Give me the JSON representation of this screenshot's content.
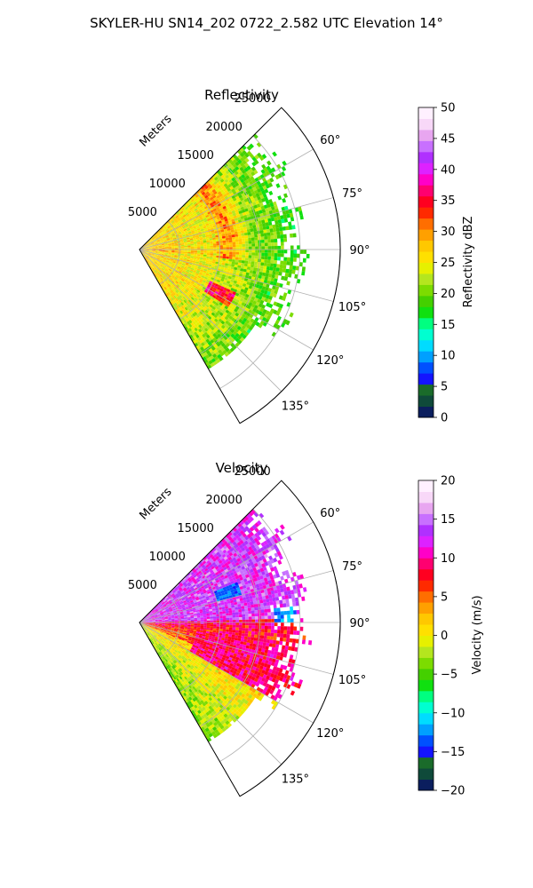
{
  "figure": {
    "title": "SKYLER-HU  SN14_202  0722_2.582 UTC Elevation 14°"
  },
  "chart_data": [
    {
      "type": "heatmap",
      "projection": "polar-sector",
      "title": "Reflectivity",
      "radial_label": "Meters",
      "azimuth_range_deg": [
        45,
        150
      ],
      "radius_max_m": 25000,
      "radial_ticks": [
        5000,
        10000,
        15000,
        20000,
        25000
      ],
      "radial_tick_labels": [
        "5000",
        "10000",
        "15000",
        "20000",
        "25000"
      ],
      "azimuth_ticks_deg": [
        60,
        75,
        90,
        105,
        120,
        135
      ],
      "azimuth_tick_labels": [
        "60°",
        "75°",
        "90°",
        "105°",
        "120°",
        "135°"
      ],
      "grid": true,
      "colorbar": {
        "label": "Reflectivity dBZ",
        "range": [
          0,
          50
        ],
        "ticks": [
          0,
          5,
          10,
          15,
          20,
          25,
          30,
          35,
          40,
          45,
          50
        ],
        "tick_labels": [
          "0",
          "5",
          "10",
          "15",
          "20",
          "25",
          "30",
          "35",
          "40",
          "45",
          "50"
        ],
        "colors": [
          "#0b1e5e",
          "#0f4a3a",
          "#1a6b2a",
          "#1414ff",
          "#0050ff",
          "#00a0ff",
          "#00dcff",
          "#00ffd0",
          "#00ff80",
          "#10e010",
          "#44d000",
          "#7cdc00",
          "#b4e61e",
          "#e6f000",
          "#ffe000",
          "#ffc800",
          "#ffa000",
          "#ff6e00",
          "#ff2a00",
          "#ff0020",
          "#ff0070",
          "#ff00c8",
          "#dd22ff",
          "#b030ff",
          "#c870ff",
          "#e8a6f0",
          "#f8d8f8",
          "#fff0ff"
        ]
      },
      "data_extent_m": 20000
    },
    {
      "type": "heatmap",
      "projection": "polar-sector",
      "title": "Velocity",
      "radial_label": "Meters",
      "azimuth_range_deg": [
        45,
        150
      ],
      "radius_max_m": 25000,
      "radial_ticks": [
        5000,
        10000,
        15000,
        20000,
        25000
      ],
      "radial_tick_labels": [
        "5000",
        "10000",
        "15000",
        "20000",
        "25000"
      ],
      "azimuth_ticks_deg": [
        60,
        75,
        90,
        105,
        120,
        135
      ],
      "azimuth_tick_labels": [
        "60°",
        "75°",
        "90°",
        "105°",
        "120°",
        "135°"
      ],
      "grid": true,
      "colorbar": {
        "label": "Velocity (m/s)",
        "range": [
          -20,
          20
        ],
        "ticks": [
          -20,
          -15,
          -10,
          -5,
          0,
          5,
          10,
          15,
          20
        ],
        "tick_labels": [
          "−20",
          "−15",
          "−10",
          "−5",
          "0",
          "5",
          "10",
          "15",
          "20"
        ],
        "colors": [
          "#0b1e5e",
          "#0f4a3a",
          "#1a6b2a",
          "#1414ff",
          "#0050ff",
          "#00a0ff",
          "#00dcff",
          "#00ffd0",
          "#00ff80",
          "#10e010",
          "#44d000",
          "#7cdc00",
          "#b4e61e",
          "#e6f000",
          "#ffe000",
          "#ffc800",
          "#ffa000",
          "#ff6e00",
          "#ff2a00",
          "#ff0020",
          "#ff0070",
          "#ff00c8",
          "#dd22ff",
          "#b030ff",
          "#c870ff",
          "#e8a6f0",
          "#f8d8f8",
          "#fff0ff"
        ]
      },
      "data_extent_m": 20000
    }
  ]
}
